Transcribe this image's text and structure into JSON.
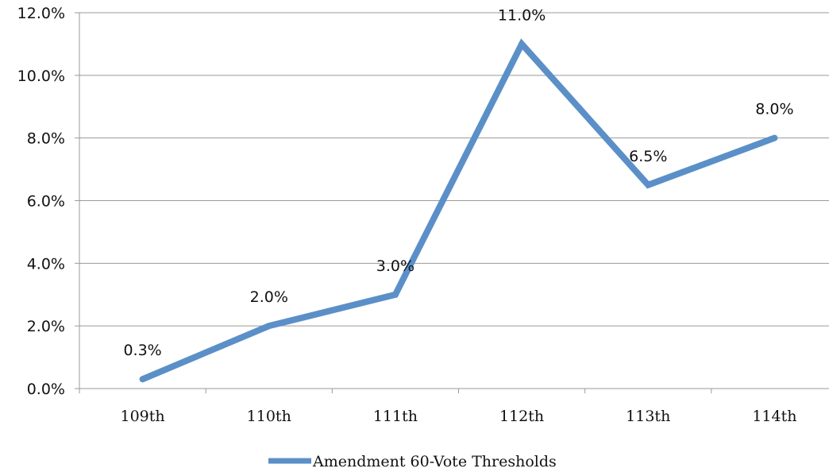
{
  "chart_data": {
    "type": "line",
    "categories": [
      "109th",
      "110th",
      "111th",
      "112th",
      "113th",
      "114th"
    ],
    "series": [
      {
        "name": "Amendment 60-Vote Thresholds",
        "values": [
          0.3,
          2.0,
          3.0,
          11.0,
          6.5,
          8.0
        ],
        "labels": [
          "0.3%",
          "2.0%",
          "3.0%",
          "11.0%",
          "6.5%",
          "8.0%"
        ],
        "color": "#5b8fc8"
      }
    ],
    "ylim": [
      0,
      12
    ],
    "yticks": [
      0,
      2,
      4,
      6,
      8,
      10,
      12
    ],
    "ytick_labels": [
      "0.0%",
      "2.0%",
      "4.0%",
      "6.0%",
      "8.0%",
      "10.0%",
      "12.0%"
    ],
    "title": "",
    "xlabel": "",
    "ylabel": "",
    "grid": true,
    "legend_position": "bottom"
  }
}
